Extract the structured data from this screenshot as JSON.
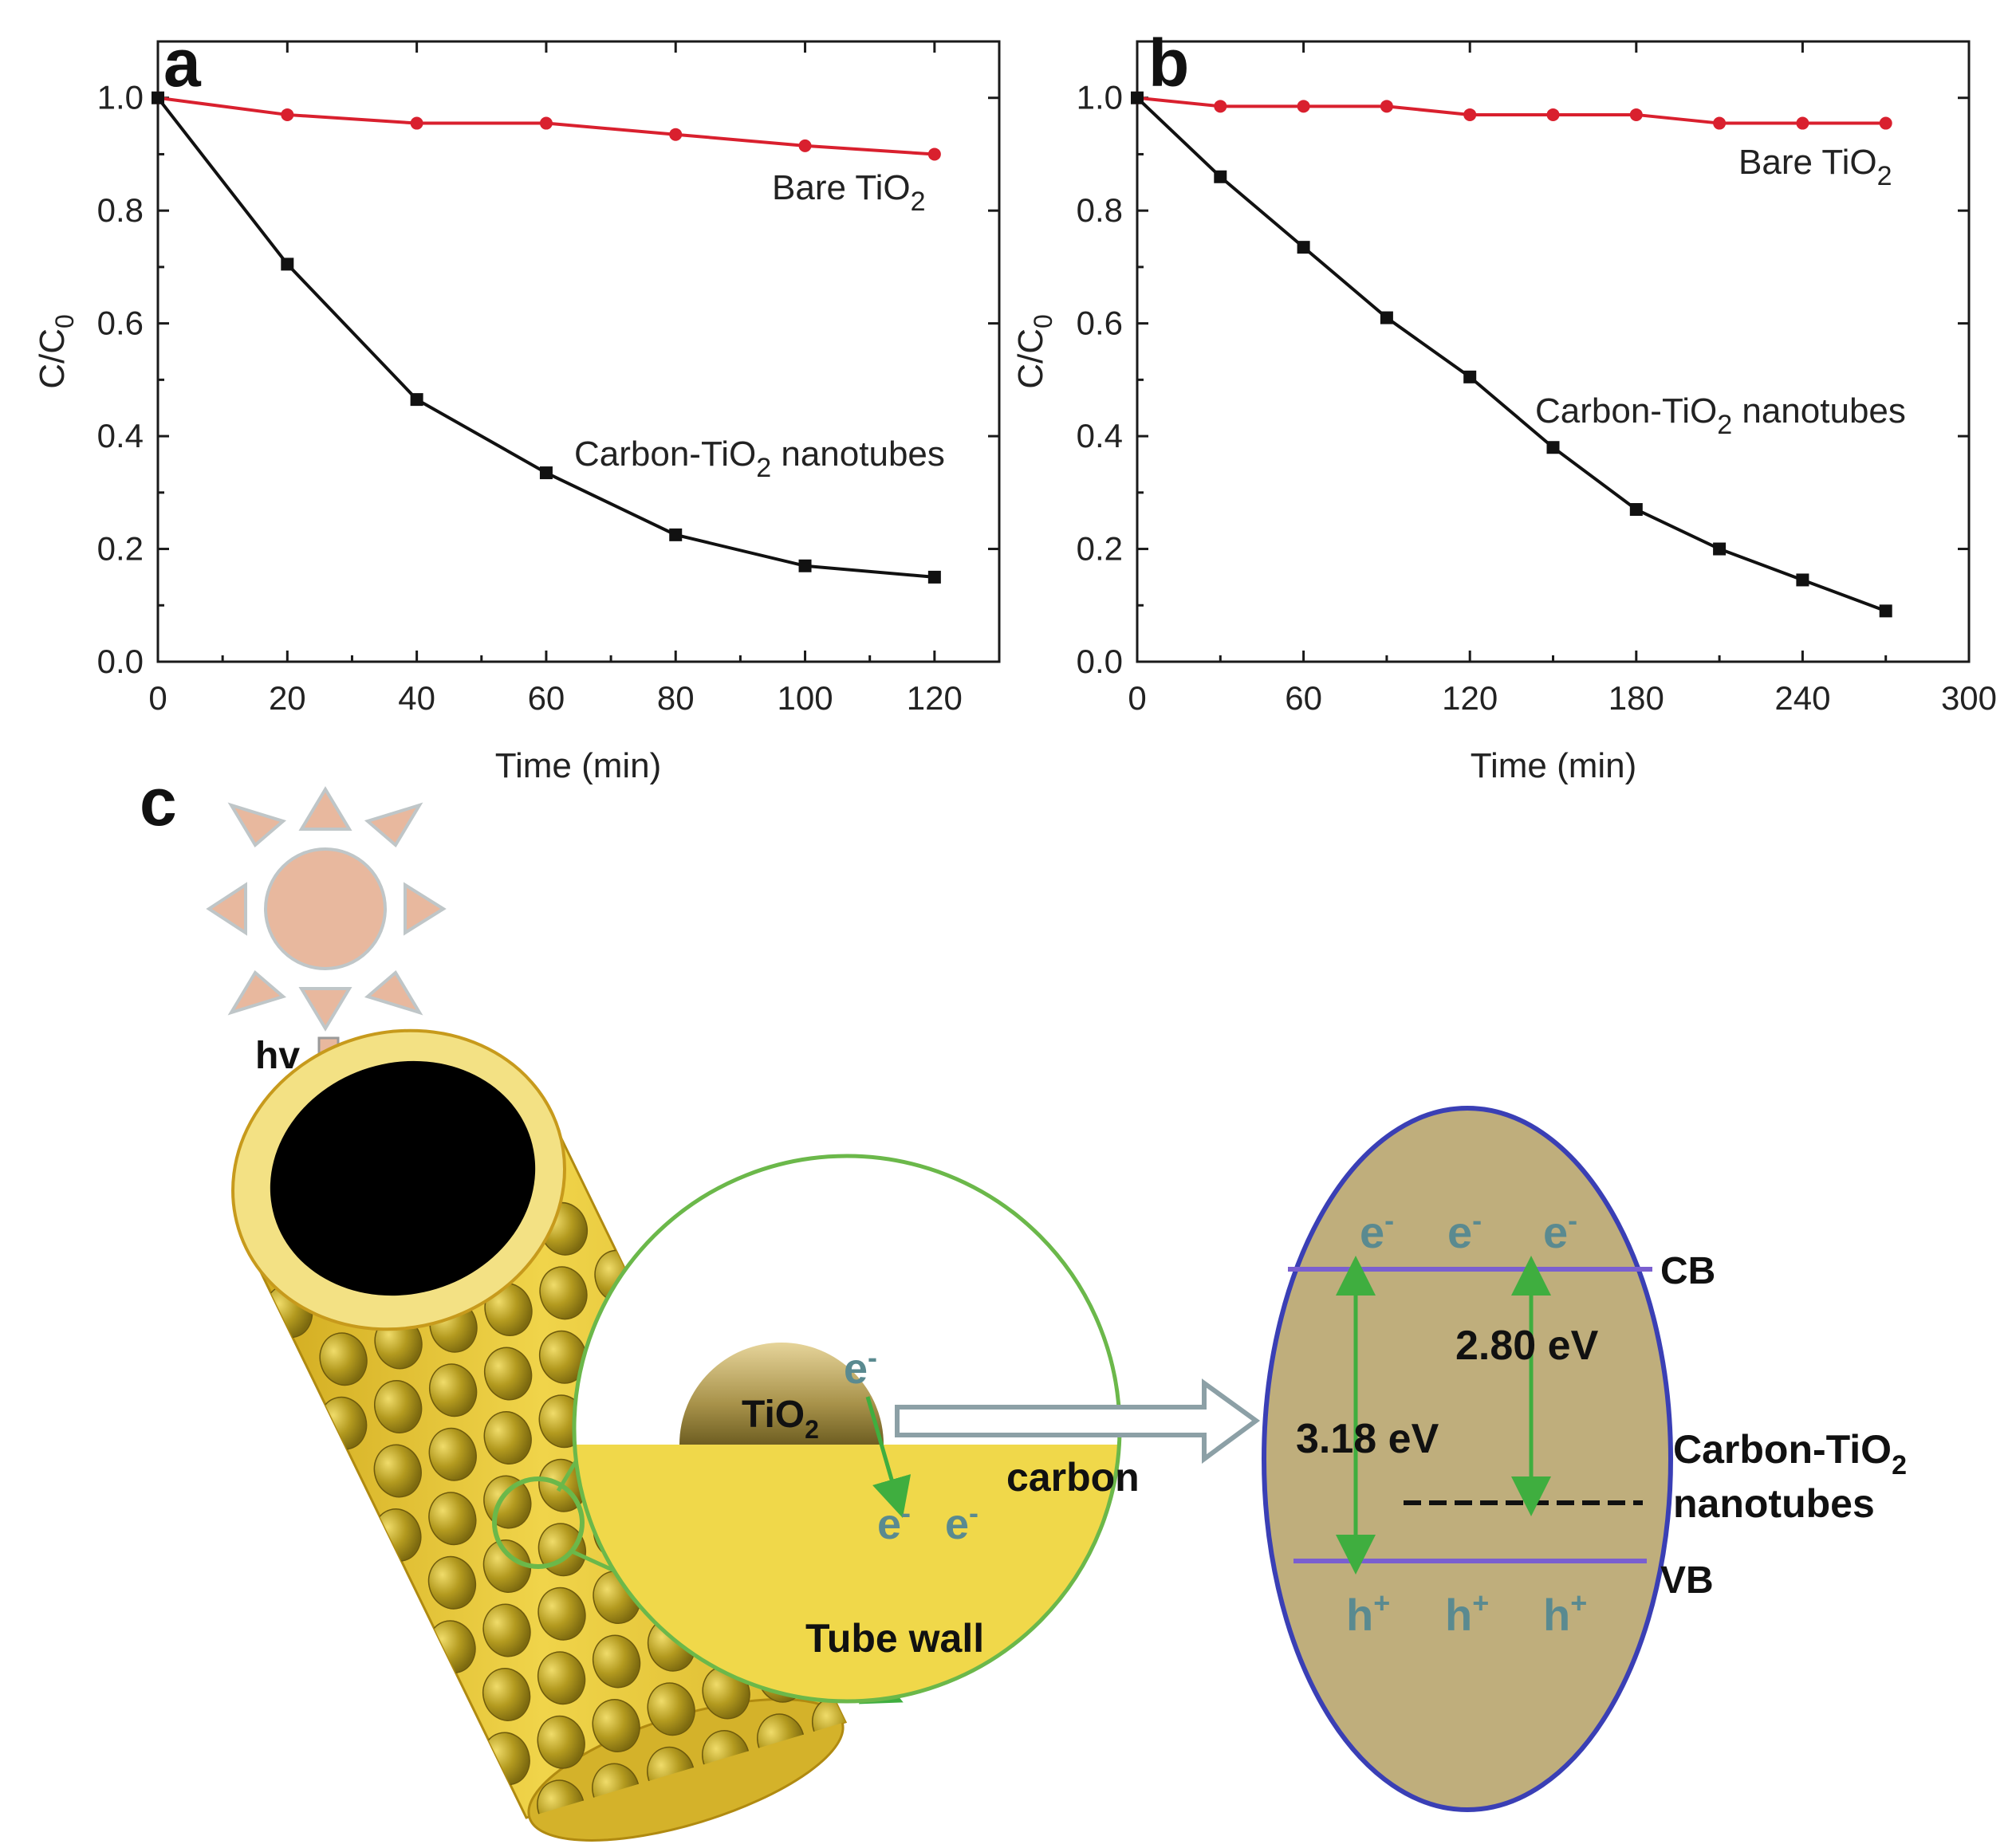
{
  "chart_data": [
    {
      "panel": "a",
      "type": "line",
      "xlabel": "Time (min)",
      "ylabel": "C/C0",
      "xlim": [
        0,
        130
      ],
      "ylim": [
        0,
        1.1
      ],
      "xticks": [
        0,
        20,
        40,
        60,
        80,
        100,
        120
      ],
      "yticks": [
        0.0,
        0.2,
        0.4,
        0.6,
        0.8,
        1.0
      ],
      "x": [
        0,
        20,
        40,
        60,
        80,
        100,
        120
      ],
      "series": [
        {
          "name": "Bare TiO2",
          "label_main": "Bare TiO",
          "label_sub": "2",
          "label_tail": "",
          "color": "#d9202e",
          "marker": "circle",
          "values": [
            1.0,
            0.97,
            0.955,
            0.955,
            0.935,
            0.915,
            0.9
          ]
        },
        {
          "name": "Carbon-TiO2 nanotubes",
          "label_main": "Carbon-TiO",
          "label_sub": "2",
          "label_tail": " nanotubes",
          "color": "#111111",
          "marker": "square",
          "values": [
            1.0,
            0.705,
            0.465,
            0.335,
            0.225,
            0.17,
            0.15
          ]
        }
      ]
    },
    {
      "panel": "b",
      "type": "line",
      "xlabel": "Time (min)",
      "ylabel": "C/C0",
      "xlim": [
        0,
        300
      ],
      "ylim": [
        0,
        1.1
      ],
      "xticks": [
        0,
        60,
        120,
        180,
        240,
        300
      ],
      "yticks": [
        0.0,
        0.2,
        0.4,
        0.6,
        0.8,
        1.0
      ],
      "x": [
        0,
        30,
        60,
        90,
        120,
        150,
        180,
        210,
        240,
        270
      ],
      "series": [
        {
          "name": "Bare TiO2",
          "label_main": "Bare TiO",
          "label_sub": "2",
          "label_tail": "",
          "color": "#d9202e",
          "marker": "circle",
          "values": [
            1.0,
            0.985,
            0.985,
            0.985,
            0.97,
            0.97,
            0.97,
            0.955,
            0.955,
            0.955
          ]
        },
        {
          "name": "Carbon-TiO2 nanotubes",
          "label_main": "Carbon-TiO",
          "label_sub": "2",
          "label_tail": " nanotubes",
          "color": "#111111",
          "marker": "square",
          "values": [
            1.0,
            0.86,
            0.735,
            0.61,
            0.505,
            0.38,
            0.27,
            0.2,
            0.145,
            0.09
          ]
        }
      ]
    }
  ],
  "ylabel_main": "C/C",
  "ylabel_sub": "0",
  "diagram": {
    "panel": "c",
    "light_label": "hv",
    "tio2_main": "TiO",
    "tio2_sub": "2",
    "electron_main": "e",
    "electron_sup": "-",
    "hole_main": "h",
    "hole_sup": "+",
    "carbon_label": "carbon",
    "tube_wall_label": "Tube wall",
    "cb_label": "CB",
    "vb_label": "VB",
    "gap_tio2": "3.18 eV",
    "gap_composite": "2.80 eV",
    "composite_label_line1_main": "Carbon-TiO",
    "composite_label_line1_sub": "2",
    "composite_label_line2": "nanotubes",
    "colors": {
      "sun": "#e8b89e",
      "tube_outer": "#e3c630",
      "tube_rim": "#f3e184",
      "particle": "#a48a18",
      "zoom_border": "#6bb84a",
      "carbon_fill": "#f0d84a",
      "band_ellipse_fill": "#bfae7c",
      "band_ellipse_border": "#3a3fb5",
      "band_line": "#7a5fd0",
      "arrow_green": "#3fae3f",
      "carrier_text": "#5a8a90"
    }
  }
}
